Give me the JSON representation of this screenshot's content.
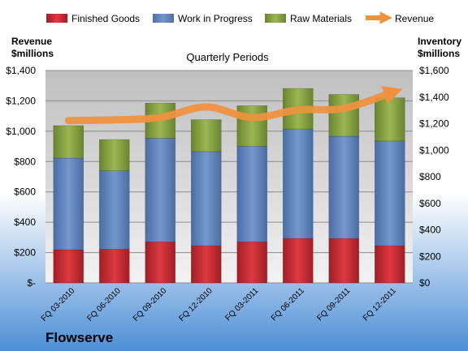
{
  "chart_data": {
    "type": "bar",
    "title": "Quarterly Periods",
    "company": "Flowserve",
    "categories": [
      "FQ 03-2010",
      "FQ 06-2010",
      "FQ 09-2010",
      "FQ 12-2010",
      "FQ 03-2011",
      "FQ 06-2011",
      "FQ 09-2011",
      "FQ 12-2011"
    ],
    "series": [
      {
        "name": "Finished Goods",
        "axis": "right",
        "color": "#C0282E",
        "values": [
          250,
          255,
          310,
          280,
          310,
          335,
          335,
          280
        ]
      },
      {
        "name": "Work in Progress",
        "axis": "right",
        "color": "#5B7FB8",
        "values": [
          690,
          590,
          780,
          710,
          720,
          825,
          770,
          790
        ]
      },
      {
        "name": "Raw Materials",
        "axis": "right",
        "color": "#7E9A3A",
        "values": [
          245,
          235,
          265,
          240,
          305,
          305,
          315,
          325
        ]
      }
    ],
    "line_series": {
      "name": "Revenue",
      "axis": "left",
      "color": "#F0913D",
      "values": [
        1070,
        1075,
        1090,
        1160,
        1090,
        1140,
        1150,
        1250
      ]
    },
    "left_axis": {
      "label_line1": "Revenue",
      "label_line2": "$millions",
      "min": 0,
      "max": 1400,
      "ticks": [
        "$-",
        "$200",
        "$400",
        "$600",
        "$800",
        "$1,000",
        "$1,200",
        "$1,400"
      ]
    },
    "right_axis": {
      "label_line1": "Inventory",
      "label_line2": "$millions",
      "min": 0,
      "max": 1600,
      "ticks": [
        "$0",
        "$200",
        "$400",
        "$600",
        "$800",
        "$1,000",
        "$1,200",
        "$1,400",
        "$1,600"
      ]
    },
    "legend_position": "top",
    "grid": true
  }
}
